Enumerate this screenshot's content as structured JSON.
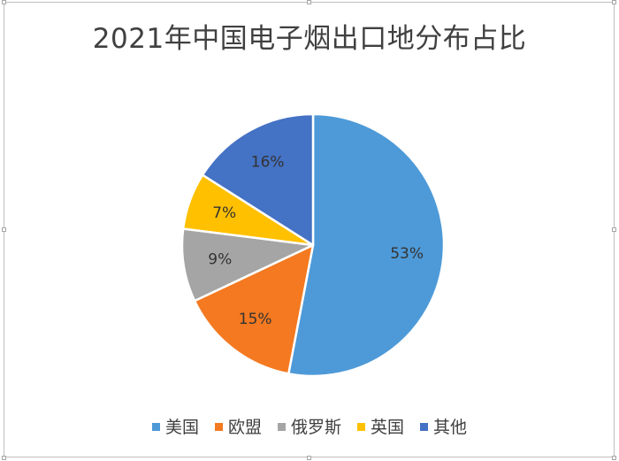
{
  "chart_data": {
    "type": "pie",
    "title": "2021年中国电子烟出口地分布占比",
    "categories": [
      "美国",
      "欧盟",
      "俄罗斯",
      "英国",
      "其他"
    ],
    "values": [
      53,
      15,
      9,
      7,
      16
    ],
    "labels": [
      "53%",
      "15%",
      "9%",
      "7%",
      "16%"
    ],
    "colors": [
      "#4e9ad8",
      "#f47920",
      "#a5a5a5",
      "#ffc000",
      "#4472c4"
    ],
    "start_angle_deg": 0,
    "direction": "clockwise",
    "legend_position": "bottom"
  }
}
